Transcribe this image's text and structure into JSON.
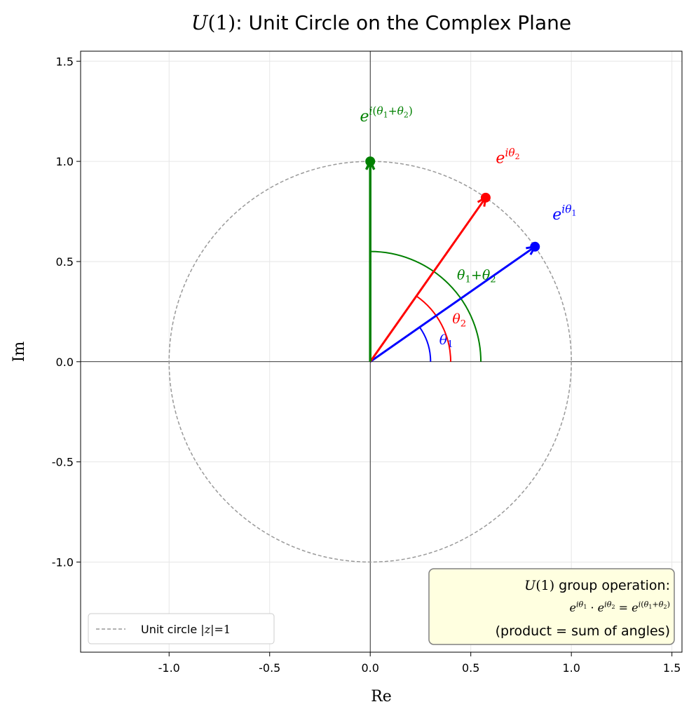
{
  "chart_data": {
    "type": "vector",
    "title": [
      {
        "text": "U",
        "style": "mathit"
      },
      {
        "text": "(1)",
        "style": "math"
      },
      {
        "text": ": Unit Circle on the Complex Plane"
      }
    ],
    "xlabel": [
      {
        "text": "Re",
        "style": "math"
      }
    ],
    "ylabel": [
      {
        "text": "Im",
        "style": "math"
      }
    ],
    "xlim": [
      -1.44,
      1.55
    ],
    "ylim": [
      -1.45,
      1.55
    ],
    "xticks": [
      {
        "value": -1,
        "label": "-1.0"
      },
      -0.5,
      {
        "value": 0,
        "label": "0.0"
      },
      0.5,
      {
        "value": 1,
        "label": "1.0"
      },
      1.5
    ],
    "yticks": [
      {
        "value": -1,
        "label": "-1.0"
      },
      -0.5,
      {
        "value": 0,
        "label": "0.0"
      },
      0.5,
      {
        "value": 1,
        "label": "1.0"
      },
      1.5
    ],
    "grid": true,
    "legend_loc": "lower left",
    "circle": {
      "radius": 1,
      "color": "#999999",
      "legend": [
        {
          "text": "Unit circle "
        },
        {
          "text": "|",
          "style": "math"
        },
        {
          "text": "z",
          "style": "mathit"
        },
        {
          "text": "|=1",
          "style": "math"
        }
      ]
    },
    "vectors": [
      {
        "label": [
          {
            "text": "e",
            "style": "mathit"
          },
          {
            "text": "iθ",
            "style": "mathit",
            "pos": "sup"
          },
          {
            "text": "1",
            "style": "math",
            "pos": "supsub"
          }
        ],
        "x": 0.819,
        "y": 0.574,
        "color": "#0000ff",
        "arc_radius": 0.3,
        "angle_label": [
          {
            "text": "θ",
            "style": "mathit"
          },
          {
            "text": "1",
            "style": "math",
            "pos": "sub"
          }
        ]
      },
      {
        "label": [
          {
            "text": "e",
            "style": "mathit"
          },
          {
            "text": "iθ",
            "style": "mathit",
            "pos": "sup"
          },
          {
            "text": "2",
            "style": "math",
            "pos": "supsub"
          }
        ],
        "x": 0.574,
        "y": 0.819,
        "color": "#ff0000",
        "arc_radius": 0.4,
        "angle_label": [
          {
            "text": "θ",
            "style": "mathit"
          },
          {
            "text": "2",
            "style": "math",
            "pos": "sub"
          }
        ]
      },
      {
        "label": [
          {
            "text": "e",
            "style": "mathit"
          },
          {
            "text": "i",
            "style": "mathit",
            "pos": "sup"
          },
          {
            "text": "(",
            "style": "math",
            "pos": "sup"
          },
          {
            "text": "θ",
            "style": "mathit",
            "pos": "sup"
          },
          {
            "text": "1",
            "style": "math",
            "pos": "supsub"
          },
          {
            "text": "+",
            "style": "math",
            "pos": "sup"
          },
          {
            "text": "θ",
            "style": "mathit",
            "pos": "sup"
          },
          {
            "text": "2",
            "style": "math",
            "pos": "supsub"
          },
          {
            "text": ")",
            "style": "math",
            "pos": "sup"
          }
        ],
        "x": 0,
        "y": 1,
        "color": "#008000",
        "arc_radius": 0.55,
        "angle_label": [
          {
            "text": "θ",
            "style": "mathit"
          },
          {
            "text": "1",
            "style": "math",
            "pos": "sub"
          },
          {
            "text": "+",
            "style": "math"
          },
          {
            "text": "θ",
            "style": "mathit"
          },
          {
            "text": "2",
            "style": "math",
            "pos": "sub"
          }
        ]
      }
    ],
    "annotation": {
      "loc": "lower right",
      "lines": [
        [
          {
            "text": "U",
            "style": "mathit"
          },
          {
            "text": "(1)",
            "style": "math"
          },
          {
            "text": " group operation:"
          }
        ],
        [
          {
            "text": "e",
            "style": "mathit"
          },
          {
            "text": "iθ",
            "style": "mathit",
            "pos": "sup"
          },
          {
            "text": "1",
            "style": "math",
            "pos": "supsub"
          },
          {
            "text": " · ",
            "style": "math"
          },
          {
            "text": "e",
            "style": "mathit"
          },
          {
            "text": "iθ",
            "style": "mathit",
            "pos": "sup"
          },
          {
            "text": "2",
            "style": "math",
            "pos": "supsub"
          },
          {
            "text": " = ",
            "style": "math"
          },
          {
            "text": "e",
            "style": "mathit"
          },
          {
            "text": "i",
            "style": "mathit",
            "pos": "sup"
          },
          {
            "text": "(",
            "style": "math",
            "pos": "sup"
          },
          {
            "text": "θ",
            "style": "mathit",
            "pos": "sup"
          },
          {
            "text": "1",
            "style": "math",
            "pos": "supsub"
          },
          {
            "text": "+",
            "style": "math",
            "pos": "sup"
          },
          {
            "text": "θ",
            "style": "mathit",
            "pos": "sup"
          },
          {
            "text": "2",
            "style": "math",
            "pos": "supsub"
          },
          {
            "text": ")",
            "style": "math",
            "pos": "sup"
          }
        ],
        [
          {
            "text": "(product "
          },
          {
            "text": "=",
            "style": "math"
          },
          {
            "text": " sum of angles)"
          }
        ]
      ]
    }
  }
}
